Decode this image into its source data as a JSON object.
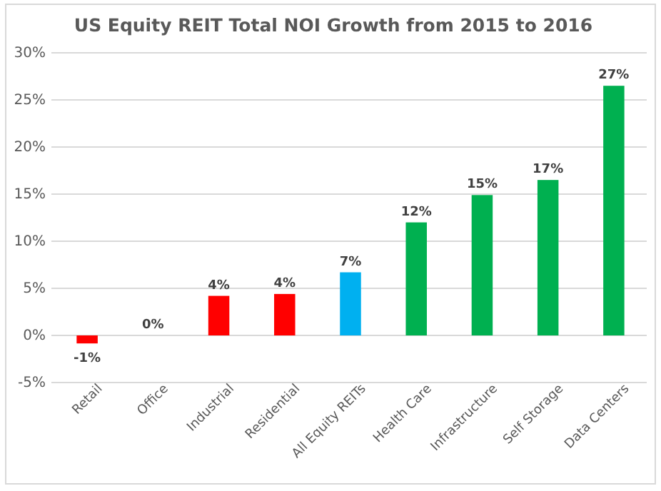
{
  "chart_data": {
    "type": "bar",
    "title": "US Equity REIT Total NOI Growth from 2015 to 2016",
    "categories": [
      "Retail",
      "Office",
      "Industrial",
      "Residential",
      "All Equity REITs",
      "Health Care",
      "Infrastructure",
      "Self Storage",
      "Data Centers"
    ],
    "values": [
      -0.85,
      0,
      4.2,
      4.4,
      6.7,
      12.0,
      14.9,
      16.5,
      26.5
    ],
    "colors": [
      "#ff0000",
      "#ff0000",
      "#ff0000",
      "#ff0000",
      "#00b0f0",
      "#00b050",
      "#00b050",
      "#00b050",
      "#00b050"
    ],
    "value_labels": [
      "-1%",
      "0%",
      "4%",
      "4%",
      "7%",
      "12%",
      "15%",
      "17%",
      "27%"
    ],
    "ylim": [
      -5,
      30
    ],
    "yticks": [
      {
        "value": -5,
        "label": "-5%"
      },
      {
        "value": 0,
        "label": "0%"
      },
      {
        "value": 5,
        "label": "5%"
      },
      {
        "value": 10,
        "label": "10%"
      },
      {
        "value": 15,
        "label": "15%"
      },
      {
        "value": 20,
        "label": "20%"
      },
      {
        "value": 25,
        "label": "25%"
      },
      {
        "value": 30,
        "label": "30%"
      }
    ],
    "grid": "y"
  }
}
